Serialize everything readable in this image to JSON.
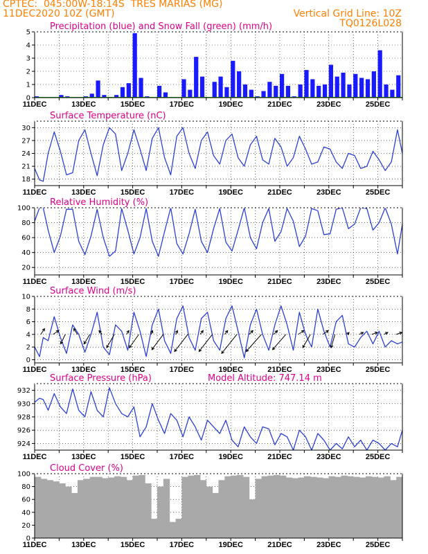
{
  "header": {
    "line1": "CPTEC:  045:00W-18:14S  TRES MARIAS (MG)",
    "line2": "11DEC2020 10Z (GMT)",
    "right1": "Vertical Grid Line: 10Z",
    "right2": "TQ0126L028"
  },
  "colors": {
    "header": "#ff7f00",
    "title": "#e0008a",
    "precip": "#1a1aff",
    "snow": "#00a000",
    "line": "#2a3fd6",
    "wind_arrow": "#000000",
    "cloud": "#a9a9a9",
    "grid": "#000000"
  },
  "x_axis": {
    "tick_labels": [
      "11DEC",
      "13DEC",
      "15DEC",
      "17DEC",
      "19DEC",
      "21DEC",
      "23DEC",
      "25DEC"
    ],
    "start": "11DEC2020 10Z",
    "end": "26DEC2020 10Z",
    "grid_every_hours": 24
  },
  "chart_data": [
    {
      "type": "bar",
      "title": "Precipitation (blue) and Snow Fall (green) (mm/h)",
      "ylim": [
        0,
        5
      ],
      "yticks": [
        0,
        1,
        2,
        3,
        4,
        5
      ],
      "x_day": [
        0.0,
        0.25,
        0.5,
        0.75,
        1.0,
        1.25,
        1.5,
        1.75,
        2.0,
        2.25,
        2.5,
        2.75,
        3.0,
        3.25,
        3.5,
        3.75,
        4.0,
        4.25,
        4.5,
        4.75,
        5.0,
        5.25,
        5.5,
        5.75,
        6.0,
        6.25,
        6.5,
        6.75,
        7.0,
        7.25,
        7.5,
        7.75,
        8.0,
        8.25,
        8.5,
        8.75,
        9.0,
        9.25,
        9.5,
        9.75,
        10.0,
        10.25,
        10.5,
        10.75,
        11.0,
        11.25,
        11.5,
        11.75,
        12.0,
        12.25,
        12.5,
        12.75,
        13.0,
        13.25,
        13.5,
        13.75,
        14.0,
        14.25,
        14.5,
        14.75
      ],
      "series": [
        {
          "name": "Precipitation",
          "values": [
            0.1,
            0.0,
            0.0,
            0.0,
            0.2,
            0.1,
            0.0,
            0.0,
            0.1,
            0.3,
            1.3,
            0.2,
            0.0,
            0.2,
            0.8,
            1.1,
            4.9,
            1.5,
            0.1,
            0.0,
            0.9,
            0.4,
            0.0,
            0.0,
            1.4,
            0.6,
            3.1,
            1.6,
            0.0,
            1.2,
            1.6,
            0.8,
            2.8,
            2.0,
            1.0,
            0.6,
            0.1,
            0.5,
            1.2,
            0.9,
            1.8,
            0.9,
            0.1,
            1.0,
            2.1,
            1.4,
            0.9,
            1.0,
            2.5,
            1.6,
            1.9,
            1.0,
            1.8,
            1.5,
            1.4,
            2.0,
            3.6,
            1.0,
            0.6,
            1.7
          ]
        },
        {
          "name": "Snow Fall",
          "values": [
            0.05,
            0.05,
            0.05,
            0.05,
            0.05,
            0.05,
            0.05,
            0.05,
            0.05,
            0.05,
            0.05,
            0.05,
            0.05,
            0.05,
            0.05,
            0.05,
            0.05,
            0.05,
            0.05,
            0.05,
            0.05,
            0.05,
            0.05,
            0.05,
            0.05,
            0.05,
            0.05,
            0.05,
            0.05,
            0.05,
            0.05,
            0.05,
            0.05,
            0.05,
            0.05,
            0.05,
            0.05,
            0.05,
            0.05,
            0.05,
            0.05,
            0.05,
            0.05,
            0.05,
            0.05,
            0.05,
            0.05,
            0.05,
            0.05,
            0.05,
            0.05,
            0.05,
            0.05,
            0.05,
            0.05,
            0.05,
            0.05,
            0.05,
            0.05,
            0.05
          ]
        }
      ]
    },
    {
      "type": "line",
      "title": "Surface Temperature (nC)",
      "ylim": [
        16.5,
        31.5
      ],
      "yticks": [
        18,
        21,
        24,
        27,
        30
      ],
      "x_day": [
        0.0,
        0.2,
        0.35,
        0.55,
        0.8,
        1.05,
        1.3,
        1.55,
        1.8,
        2.05,
        2.3,
        2.55,
        2.8,
        3.05,
        3.3,
        3.55,
        3.8,
        4.05,
        4.3,
        4.55,
        4.8,
        5.05,
        5.3,
        5.55,
        5.8,
        6.05,
        6.3,
        6.55,
        6.8,
        7.05,
        7.3,
        7.55,
        7.8,
        8.05,
        8.3,
        8.55,
        8.8,
        9.05,
        9.3,
        9.55,
        9.8,
        10.05,
        10.3,
        10.55,
        10.8,
        11.05,
        11.3,
        11.55,
        11.8,
        12.05,
        12.3,
        12.55,
        12.8,
        13.05,
        13.3,
        13.55,
        13.8,
        14.05,
        14.3,
        14.55,
        14.8,
        15.0
      ],
      "values": [
        20.5,
        17.8,
        17.5,
        24.0,
        29.0,
        24.5,
        19.0,
        19.5,
        27.0,
        29.5,
        24.0,
        18.8,
        26.0,
        30.0,
        28.5,
        20.0,
        24.0,
        29.5,
        25.0,
        20.0,
        27.5,
        30.0,
        23.0,
        19.0,
        28.0,
        30.0,
        24.0,
        20.5,
        27.0,
        29.0,
        23.5,
        21.5,
        27.0,
        28.5,
        23.0,
        21.0,
        26.0,
        28.0,
        22.5,
        21.5,
        27.5,
        25.5,
        21.0,
        23.0,
        28.0,
        25.0,
        21.5,
        22.0,
        25.5,
        25.0,
        22.0,
        20.5,
        24.0,
        23.5,
        20.5,
        21.0,
        24.5,
        22.5,
        20.0,
        22.0,
        29.5,
        24.0
      ]
    },
    {
      "type": "line",
      "title": "Relative Humidity (%)",
      "ylim": [
        10,
        100
      ],
      "yticks": [
        20,
        40,
        60,
        80,
        100
      ],
      "x_day": [
        0.0,
        0.2,
        0.35,
        0.55,
        0.8,
        1.05,
        1.3,
        1.55,
        1.8,
        2.05,
        2.3,
        2.55,
        2.8,
        3.05,
        3.3,
        3.55,
        3.8,
        4.05,
        4.3,
        4.55,
        4.8,
        5.05,
        5.3,
        5.55,
        5.8,
        6.05,
        6.3,
        6.55,
        6.8,
        7.05,
        7.3,
        7.55,
        7.8,
        8.05,
        8.3,
        8.55,
        8.8,
        9.05,
        9.3,
        9.55,
        9.8,
        10.05,
        10.3,
        10.55,
        10.8,
        11.05,
        11.3,
        11.55,
        11.8,
        12.05,
        12.3,
        12.55,
        12.8,
        13.05,
        13.3,
        13.55,
        13.8,
        14.05,
        14.3,
        14.55,
        14.8,
        15.0
      ],
      "values": [
        82,
        100,
        100,
        70,
        40,
        62,
        98,
        98,
        55,
        37,
        62,
        98,
        60,
        35,
        42,
        99,
        70,
        38,
        60,
        99,
        55,
        35,
        68,
        100,
        52,
        38,
        65,
        98,
        55,
        40,
        72,
        99,
        54,
        42,
        70,
        100,
        60,
        45,
        80,
        99,
        55,
        68,
        99,
        82,
        48,
        62,
        99,
        96,
        64,
        65,
        98,
        100,
        72,
        78,
        100,
        99,
        70,
        80,
        100,
        78,
        38,
        78
      ]
    },
    {
      "type": "line",
      "title": "Surface Wind (m/s)",
      "ylim": [
        -0.5,
        10
      ],
      "yticks": [
        0,
        2,
        4,
        6,
        8,
        10
      ],
      "x_day": [
        0.0,
        0.2,
        0.35,
        0.55,
        0.8,
        1.05,
        1.3,
        1.55,
        1.8,
        2.05,
        2.3,
        2.55,
        2.8,
        3.05,
        3.3,
        3.55,
        3.8,
        4.05,
        4.3,
        4.55,
        4.8,
        5.05,
        5.3,
        5.55,
        5.8,
        6.05,
        6.3,
        6.55,
        6.8,
        7.05,
        7.3,
        7.55,
        7.8,
        8.05,
        8.3,
        8.55,
        8.8,
        9.05,
        9.3,
        9.55,
        9.8,
        10.05,
        10.3,
        10.55,
        10.8,
        11.05,
        11.3,
        11.55,
        11.8,
        12.05,
        12.3,
        12.55,
        12.8,
        13.05,
        13.3,
        13.55,
        13.8,
        14.05,
        14.3,
        14.55,
        14.8,
        15.0
      ],
      "values": [
        2.0,
        0.5,
        3.5,
        3.0,
        6.8,
        3.5,
        1.0,
        5.5,
        4.0,
        1.2,
        4.0,
        7.5,
        2.0,
        0.8,
        5.5,
        4.5,
        1.5,
        7.5,
        4.5,
        0.5,
        5.5,
        8.0,
        3.0,
        1.0,
        6.5,
        8.5,
        3.5,
        1.5,
        6.5,
        7.5,
        3.0,
        1.5,
        6.5,
        8.5,
        4.5,
        0.3,
        5.5,
        8.0,
        4.0,
        1.5,
        5.5,
        8.5,
        5.5,
        1.5,
        7.5,
        4.0,
        2.0,
        8.0,
        4.5,
        2.0,
        6.0,
        7.0,
        2.5,
        2.0,
        3.5,
        4.5,
        2.5,
        4.5,
        2.0,
        3.0,
        2.5,
        2.8
      ],
      "arrows": {
        "x_day": [
          0.25,
          0.75,
          1.25,
          1.75,
          2.25,
          2.75,
          3.25,
          3.75,
          4.25,
          4.75,
          5.25,
          5.75,
          6.25,
          6.75,
          7.25,
          7.75,
          8.25,
          8.75,
          9.25,
          9.75,
          10.25,
          10.75,
          11.25,
          11.75,
          12.25,
          12.75,
          13.25,
          13.75,
          14.25,
          14.75
        ],
        "u": [
          1.0,
          1.5,
          -1.2,
          -1.0,
          -1.5,
          -0.8,
          -2.0,
          0.6,
          -2.5,
          0.4,
          -3.0,
          0.5,
          -3.5,
          0.8,
          -3.5,
          0.8,
          -4.0,
          1.0,
          -4.0,
          1.0,
          -3.5,
          1.5,
          -2.0,
          1.5,
          -1.0,
          0.5,
          1.0,
          1.5,
          1.0,
          1.5
        ],
        "v": [
          1.5,
          1.0,
          -2.5,
          1.5,
          -2.5,
          1.0,
          -3.5,
          1.0,
          -3.5,
          1.0,
          -4.0,
          1.0,
          -4.5,
          1.0,
          -4.5,
          1.0,
          -5.0,
          1.0,
          -4.5,
          1.0,
          -4.0,
          1.0,
          -3.5,
          1.0,
          -3.5,
          0.5,
          0.5,
          0.5,
          0.5,
          0.5
        ]
      }
    },
    {
      "type": "line",
      "title": "Surface Pressure (hPa)",
      "subtitle": "Model Altitude: 747.14 m",
      "ylim": [
        923,
        933
      ],
      "yticks": [
        924,
        926,
        928,
        930,
        932
      ],
      "x_day": [
        0.0,
        0.2,
        0.35,
        0.55,
        0.8,
        1.05,
        1.3,
        1.55,
        1.8,
        2.05,
        2.3,
        2.55,
        2.8,
        3.05,
        3.3,
        3.55,
        3.8,
        4.05,
        4.3,
        4.55,
        4.8,
        5.05,
        5.3,
        5.55,
        5.8,
        6.05,
        6.3,
        6.55,
        6.8,
        7.05,
        7.3,
        7.55,
        7.8,
        8.05,
        8.3,
        8.55,
        8.8,
        9.05,
        9.3,
        9.55,
        9.8,
        10.05,
        10.3,
        10.55,
        10.8,
        11.05,
        11.3,
        11.55,
        11.8,
        12.05,
        12.3,
        12.55,
        12.8,
        13.05,
        13.3,
        13.55,
        13.8,
        14.05,
        14.3,
        14.55,
        14.8,
        15.0
      ],
      "values": [
        930.2,
        930.8,
        930.6,
        929.0,
        931.5,
        929.5,
        928.5,
        932.2,
        929.0,
        928.0,
        931.8,
        929.0,
        928.0,
        932.4,
        930.0,
        928.5,
        928.0,
        929.5,
        925.0,
        926.5,
        930.0,
        927.5,
        925.5,
        928.5,
        927.5,
        925.0,
        928.0,
        926.5,
        924.5,
        927.5,
        926.5,
        925.5,
        927.5,
        924.5,
        923.5,
        926.5,
        925.0,
        924.0,
        926.5,
        926.2,
        923.8,
        925.5,
        925.0,
        923.0,
        926.0,
        925.0,
        923.0,
        925.5,
        924.5,
        923.0,
        924.0,
        923.2,
        925.0,
        923.5,
        924.5,
        923.0,
        924.5,
        924.0,
        923.0,
        924.0,
        923.5,
        926.0
      ]
    },
    {
      "type": "bar",
      "title": "Cloud Cover (%)",
      "ylim": [
        0,
        100
      ],
      "yticks": [
        0,
        20,
        40,
        60,
        80,
        100
      ],
      "x_day": [
        0.0,
        0.25,
        0.5,
        0.75,
        1.0,
        1.25,
        1.5,
        1.75,
        2.0,
        2.25,
        2.5,
        2.75,
        3.0,
        3.25,
        3.5,
        3.75,
        4.0,
        4.25,
        4.5,
        4.75,
        5.0,
        5.25,
        5.5,
        5.75,
        6.0,
        6.25,
        6.5,
        6.75,
        7.0,
        7.25,
        7.5,
        7.75,
        8.0,
        8.25,
        8.5,
        8.75,
        9.0,
        9.25,
        9.5,
        9.75,
        10.0,
        10.25,
        10.5,
        10.75,
        11.0,
        11.25,
        11.5,
        11.75,
        12.0,
        12.25,
        12.5,
        12.75,
        13.0,
        13.25,
        13.5,
        13.75,
        14.0,
        14.25,
        14.5,
        14.75
      ],
      "values": [
        95,
        92,
        90,
        88,
        85,
        80,
        70,
        90,
        92,
        95,
        95,
        93,
        94,
        96,
        95,
        90,
        97,
        98,
        85,
        30,
        80,
        92,
        25,
        30,
        95,
        97,
        98,
        90,
        80,
        70,
        90,
        96,
        97,
        98,
        95,
        60,
        92,
        96,
        97,
        98,
        97,
        94,
        93,
        94,
        96,
        95,
        94,
        93,
        96,
        95,
        97,
        96,
        95,
        94,
        96,
        95,
        94,
        96,
        90,
        95
      ]
    }
  ]
}
